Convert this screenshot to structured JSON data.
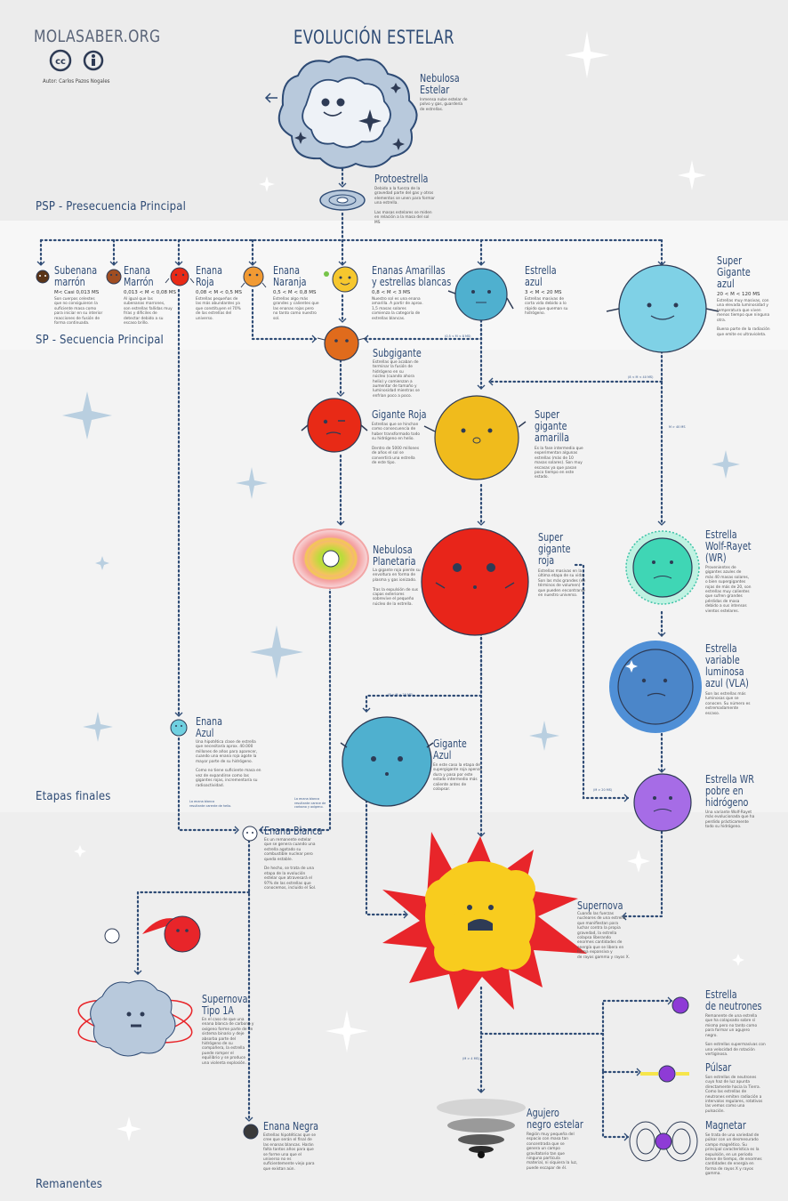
{
  "brand": "MOLASABER.ORG",
  "author": "Autor: Carlos Pazos Nogales",
  "title": "EVOLUCIÓN ESTELAR",
  "stages": {
    "psp": "PSP - Presecuencia Principal",
    "sp": "SP - Secuencia Principal",
    "final": "Etapas finales",
    "remnants": "Remanentes"
  },
  "colors": {
    "line": "#2e4b75",
    "psp_band": "#f5f5f5",
    "sp_band": "#f9f9f9",
    "final_band": "#f2f2f2"
  },
  "icons": [
    "cc-icon",
    "by-icon"
  ],
  "nodes": {
    "nebulosa": {
      "name": "Nebulosa\nEstelar",
      "desc": "Inmensa nube estelar de\npolvo y gas, guardería\nde estrellas."
    },
    "proto": {
      "name": "Protoestrella",
      "desc": "Debido a la fuerza de la\ngravedad parte del gas y otros\nelementos se unen para formar\nuna estrella.\n\nLas masas estelares se miden\nen relación a la masa del sol\nMS"
    },
    "subenana": {
      "name": "Subenana\nmarrón",
      "range": "M< Casi 0,013 MS",
      "desc": "Son cuerpos celestes\nque no consiguieron la\nsuficiente masa como\npara iniciar en su interior\nreacciones de fusión de\nforma continuada."
    },
    "enana_marron": {
      "name": "Enana\nMarrón",
      "range": "0,013 < M < 0,08 MS",
      "desc": "Al igual que las\nsubenanas marrones,\nson estrellas fallidas muy\nfrías y difíciles de\ndetectar debido a su\nescaso brillo."
    },
    "enana_roja": {
      "name": "Enana\nRoja",
      "range": "0,08 < M < 0,5 MS",
      "desc": "Estrellas pequeñas  de\nlas más abundantes ya\nque constituyen el 70%\nde las estrellas del\nuniverso."
    },
    "enana_naranja": {
      "name": "Enana\nNaranja",
      "range": "0,5 < M < 0,8 MS",
      "desc": "Estrellas algo más\ngrandes y calientes que\nlas enanas rojas pero\nno tanto como nuestro\nsol."
    },
    "amarillas": {
      "name": "Enanas Amarillas\ny estrellas blancas",
      "range": "0,8 < M < 3 MS",
      "desc": "Nuestro sol es una enana\namarilla. A partir de aprox.\n1,5 masas solares\ncomienza la categoría de\nestrellas blancas."
    },
    "azul": {
      "name": "Estrella\nazul",
      "range": "3 < M < 20 MS",
      "desc": "Estrellas masivas de\ncorta vida debido a lo\nrápido que queman su\nhidrógeno."
    },
    "supergigante_azul": {
      "name": "Super\nGigante\nazul",
      "range": "20 < M < 120 MS",
      "desc": "Estrellas muy masivas, con\nuna elevada luminosidad y\ntemperatura que viven\nmenos tiempo que ninguna\notra.\n\nBuena parte de la radiación\nque emite es ultravioleta."
    },
    "subgigante": {
      "name": "Subgigante",
      "desc": "Estrellas que acaban de\nterminar la fusión de\nhidrógeno en su\nnúcleo (cuando ahora\nhelio) y comienzan a\naumentar de tamaño y\nluminosidad mientras se\nenfrían poco a poco."
    },
    "gigante_roja": {
      "name": "Gigante Roja",
      "desc": "Estrellas que se hinchan\ncomo consecuencia de\nhaber transformado todo\nsu hidrógeno en helio.\n\nDentro de 5000 millones\nde años el sol se\nconvertirá una estrella\nde este tipo."
    },
    "sg_amarilla": {
      "name": "Super\ngigante\namarilla",
      "desc": "Es la fase intermedia que\nexperimentan algunas\nestrellas (más de 10\nmasas solares). Son muy\nescasas ya que pasan\npoco tiempo en este\nestado."
    },
    "nebulosa_planetaria": {
      "name": "Nebulosa\nPlanetaria",
      "desc": "La gigante roja pierde su\nenvoltura en forma de\nplasma y gas ionizado.\n\nTras la expulsión de sus\ncapas exteriores\nsobrevive el pequeño\nnúcleo de la estrella."
    },
    "sg_roja": {
      "name": "Super\ngigante\nroja",
      "desc": "Estrellas masivas en la\núltima etapa de su vida.\nSon las más grandes (en\ntérminos de volumen)\nque pueden encontrarse\nen nuestro universo."
    },
    "wolf_rayet": {
      "name": "Estrella\nWolf-Rayet\n(WR)",
      "desc": "Provenientes de\ngigantes azules de\nmás 40 masas solares,\no bien supergigantes\nrojas de más de 20, son\nestrellas muy calientes\nque sufren grandes\npérdidas de masa\ndebido a sus intensos\nvientos estelares."
    },
    "vla": {
      "name": "Estrella\nvariable\nluminosa\nazul (VLA)",
      "desc": "Son las estrellas más\nluminosas que se\nconocen. Su número es\nextremadamente\nescaso."
    },
    "enana_azul": {
      "name": "Enana\nAzul",
      "desc": "Una hipotética clase de estrella\nque necesitaría aprox. 40.000\nmillones de años para aparecer,\ncuando una enana roja agote la\nmayor parte de su hidrógeno.\n\nComo no tiene suficiente masa en\nvez de expandirse como las\ngigantes rojas, incrementaría su\nradioactividad."
    },
    "gigante_azul": {
      "name": "Gigante\nAzul",
      "desc": "En este caso la etapa de\nsupergigante roja apenas\ndura y pasa por este\nestado intermedio más\ncaliente antes de\ncolapsar."
    },
    "wr_pobre": {
      "name": "Estrella WR\npobre en\nhidrógeno",
      "desc": "Una variante Wolf-Rayet\nmás evolucionada que ha\nperdido prácticamente\ntodo su hidrógeno."
    },
    "enana_blanca": {
      "name": "Enana Blanca",
      "desc": "Es un remanente estelar\nque se genera cuando una\nestrella agotado su\ncombustible nuclear pero\nqueda estable.\n\nDe hecho, se trata de una\netapa de la evolución\nestelar que atravesará el\n97% de las estrellas que\nconocemos, incluido el Sol."
    },
    "supernova": {
      "name": "Supernova",
      "desc": "Cuando las fuerzas\nnucleares de una estrella\nque manifiestan para\nluchar contra la propia\ngravedad, la estrella\ncolapsa liberando\nenormes cantidades de\nenergía que se libera en\nforma expansiva y\nde rayos gamma y rayos X."
    },
    "supernova_1a": {
      "name": "Supernova\nTipo 1A",
      "desc": "En el caso de que una\nenana blanca de carbono y\noxígeno forme parte de un\nsistema binario y deje\nabsorba parte del\nhidrógeno de su\ncompañera, la estrella\npuede romper el\nequilibrio y se produce\nuna violenta explosión."
    },
    "neutrones": {
      "name": "Estrella\nde neutrones",
      "desc": "Remanente de una estrella\nque ha colapsado sobre sí\nmisma pero no tanto como\npara formar un agujero\nnegro.\n\nSon estrellas supermasivas con\nuna velocidad de rotación\nvertiginosa."
    },
    "pulsar": {
      "name": "Púlsar",
      "desc": "Son estrellas de neutrones\ncuyo haz de luz apunta\ndirectamente hacia la Tierra.\nComo las estrellas de\nneutrones emiten radiación a\nintervalos regulares, rotativos\nlas vemos como una\npulsación."
    },
    "agujero": {
      "name": "Agujero\nnegro estelar",
      "desc": "Región muy pequeña del\nespacio con masa tan\nconcentrada que se\ngenera un campo\ngravitatorio tan que\nninguna partícula\nmaterial, ni siquiera la luz,\npuede escapar de él."
    },
    "magnetar": {
      "name": "Magnetar",
      "desc": "Se trata de una variedad de\npúlsar con un desmesurado\ncampo magnético. Su\nprincipal característica es la\nexpulsión, en un periodo\nbreve de tiempo, de enormes\ncantidades de energía en\nforma de rayos X y rayos\ngamma."
    },
    "enana_negra": {
      "name": "Enana Negra",
      "desc": "Estrellas hipotéticas que se\ncree que serán el final de\nlas enanas blancas. Harán\nfalta tantos años para que\nse forme una que el\nuniverso no es\nsuficientemente viejo para\nque existan aún."
    }
  },
  "conds": {
    "c1": "(0,5 < M < 8 MS)",
    "c2": "(8 < M < 40 MS)",
    "c3": "M > 40 MS",
    "c4": "(8 < M < 20 MS)",
    "c5": "(M > 20 MS)",
    "c6": "(M > 4 MS)",
    "c7": "La enana blanca\nresultante carente de helio.",
    "c8": "La enana blanca\nresultante carece de\ncarbono y oxígeno."
  }
}
